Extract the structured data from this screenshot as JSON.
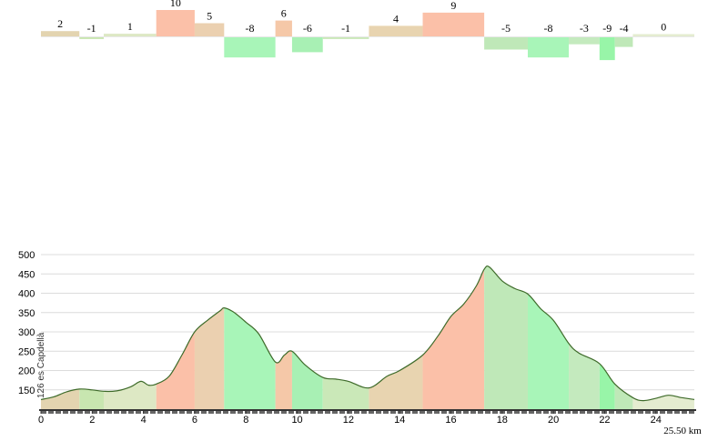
{
  "chart_data": [
    {
      "type": "bar",
      "segments": [
        {
          "start_km": 0.0,
          "end_km": 1.5,
          "grade": 2,
          "color": "#e3d4b0"
        },
        {
          "start_km": 1.5,
          "end_km": 2.45,
          "grade": -1,
          "color": "#c8e6b0"
        },
        {
          "start_km": 2.45,
          "end_km": 4.5,
          "grade": 1,
          "color": "#dde8c4"
        },
        {
          "start_km": 4.5,
          "end_km": 6.0,
          "grade": 10,
          "color": "#fbc0a8"
        },
        {
          "start_km": 6.0,
          "end_km": 7.15,
          "grade": 5,
          "color": "#ebd0b0"
        },
        {
          "start_km": 7.15,
          "end_km": 9.15,
          "grade": -8,
          "color": "#a8f5b8"
        },
        {
          "start_km": 9.15,
          "end_km": 9.8,
          "grade": 6,
          "color": "#f5c8a8"
        },
        {
          "start_km": 9.8,
          "end_km": 11.0,
          "grade": -6,
          "color": "#a8f0b4"
        },
        {
          "start_km": 11.0,
          "end_km": 12.8,
          "grade": -1,
          "color": "#cae8b8"
        },
        {
          "start_km": 12.8,
          "end_km": 14.9,
          "grade": 4,
          "color": "#e8d4b0"
        },
        {
          "start_km": 14.9,
          "end_km": 17.3,
          "grade": 9,
          "color": "#fbc0a8"
        },
        {
          "start_km": 17.3,
          "end_km": 19.0,
          "grade": -5,
          "color": "#bfe8b8"
        },
        {
          "start_km": 19.0,
          "end_km": 20.6,
          "grade": -8,
          "color": "#a8f5b8"
        },
        {
          "start_km": 20.6,
          "end_km": 21.8,
          "grade": -3,
          "color": "#c4eabe"
        },
        {
          "start_km": 21.8,
          "end_km": 22.4,
          "grade": -9,
          "color": "#98f5a8"
        },
        {
          "start_km": 22.4,
          "end_km": 23.1,
          "grade": -4,
          "color": "#bfe8b8"
        },
        {
          "start_km": 23.1,
          "end_km": 25.5,
          "grade": 0,
          "color": "#e4ecd0"
        }
      ]
    },
    {
      "type": "area",
      "profile": [
        [
          0.0,
          125
        ],
        [
          0.5,
          132
        ],
        [
          1.0,
          145
        ],
        [
          1.5,
          152
        ],
        [
          2.0,
          150
        ],
        [
          2.5,
          146
        ],
        [
          3.0,
          148
        ],
        [
          3.5,
          158
        ],
        [
          3.9,
          172
        ],
        [
          4.2,
          162
        ],
        [
          4.5,
          165
        ],
        [
          5.0,
          185
        ],
        [
          5.5,
          240
        ],
        [
          6.0,
          300
        ],
        [
          6.5,
          330
        ],
        [
          7.0,
          355
        ],
        [
          7.15,
          362
        ],
        [
          7.5,
          352
        ],
        [
          8.0,
          325
        ],
        [
          8.5,
          295
        ],
        [
          9.15,
          222
        ],
        [
          9.5,
          240
        ],
        [
          9.8,
          250
        ],
        [
          10.3,
          215
        ],
        [
          11.0,
          182
        ],
        [
          11.5,
          178
        ],
        [
          12.0,
          172
        ],
        [
          12.8,
          155
        ],
        [
          13.5,
          185
        ],
        [
          14.0,
          200
        ],
        [
          14.9,
          240
        ],
        [
          15.5,
          290
        ],
        [
          16.0,
          340
        ],
        [
          16.5,
          372
        ],
        [
          17.0,
          420
        ],
        [
          17.3,
          462
        ],
        [
          17.5,
          468
        ],
        [
          18.0,
          432
        ],
        [
          18.5,
          412
        ],
        [
          19.0,
          398
        ],
        [
          19.5,
          360
        ],
        [
          20.0,
          330
        ],
        [
          20.6,
          270
        ],
        [
          21.0,
          245
        ],
        [
          21.8,
          218
        ],
        [
          22.4,
          165
        ],
        [
          23.1,
          130
        ],
        [
          23.5,
          122
        ],
        [
          24.0,
          128
        ],
        [
          24.5,
          136
        ],
        [
          25.0,
          130
        ],
        [
          25.5,
          125
        ]
      ],
      "xlim": [
        0,
        25.5
      ],
      "ylim": [
        100,
        500
      ],
      "y_ticks": [
        150,
        200,
        250,
        300,
        350,
        400,
        450,
        500
      ],
      "x_ticks": [
        0,
        2,
        4,
        6,
        8,
        10,
        12,
        14,
        16,
        18,
        20,
        22,
        24
      ],
      "start_label": "126 es Capdellà",
      "end_label": "25.50 km",
      "grid": true
    }
  ],
  "colors": {
    "grid": "#dcdcdc",
    "profile_line": "#3e6b2a",
    "axis_dark": "#333333",
    "axis_tick": "#666666"
  }
}
